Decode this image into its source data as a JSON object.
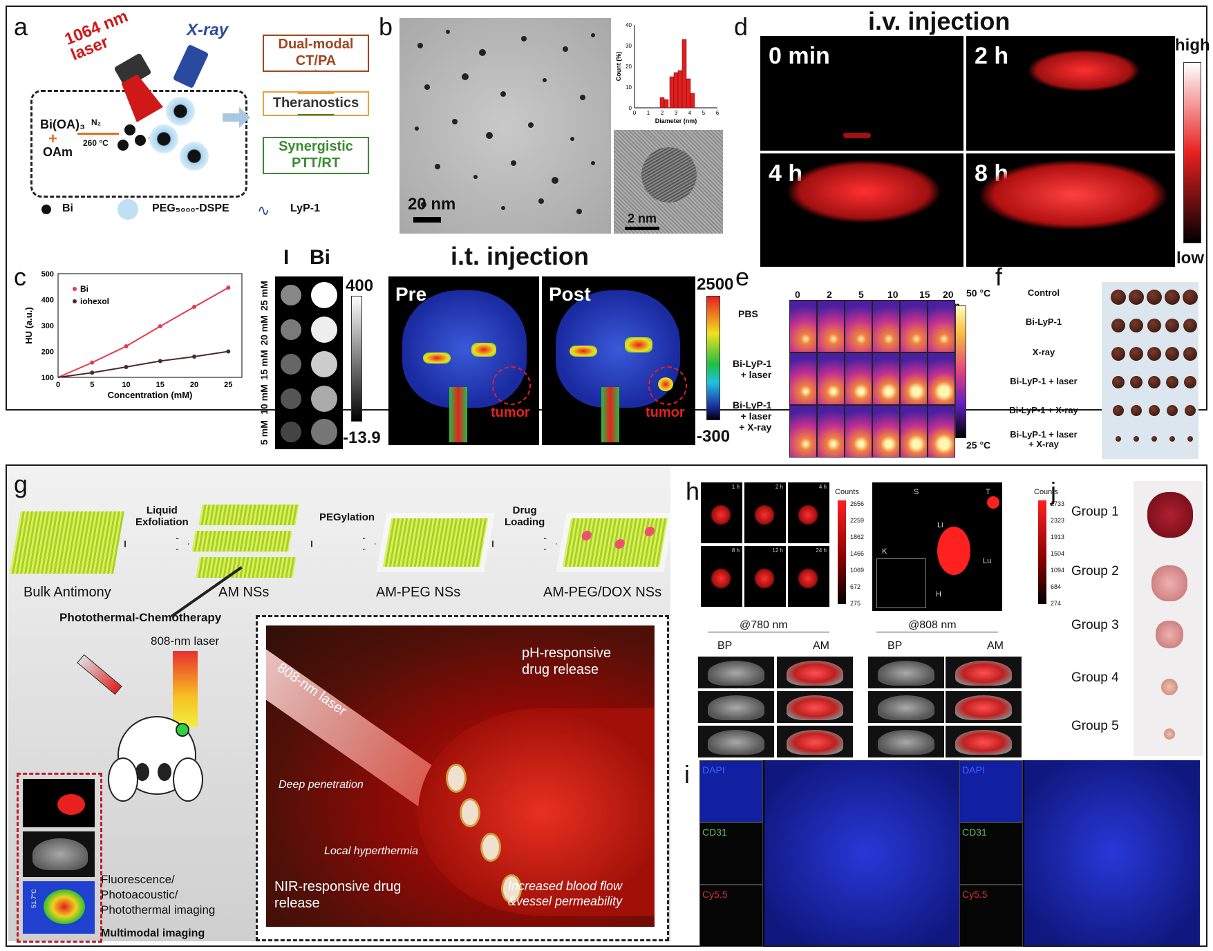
{
  "panels": {
    "a": {
      "letter": "a",
      "laser": "1064 nm\nlaser",
      "xray": "X-ray",
      "reagent1": "Bi(OA)₃",
      "reagent2": "OAm",
      "cond_gas": "N₂",
      "cond_temp": "260 °C",
      "box_top": "Dual-modal\nCT/PA",
      "box_mid": "Theranostics",
      "box_bot": "Synergistic\nPTT/RT",
      "legend_bi": "Bi",
      "legend_peg": "PEG₅₀₀₀-DSPE",
      "legend_lyp": "LyP-1"
    },
    "b": {
      "letter": "b",
      "scale1": "20 nm",
      "scale2": "2 nm",
      "hist_ylabel": "Count (%)",
      "hist_xlabel": "Diameter (nm)",
      "hist_yticks": [
        "0",
        "10",
        "20",
        "30",
        "40"
      ],
      "hist_xticks": [
        "0",
        "1",
        "2",
        "3",
        "4",
        "5",
        "6"
      ]
    },
    "c": {
      "letter": "c",
      "ylabel": "HU (a.u.)",
      "xlabel": "Concentration (mM)",
      "legend_bi": "Bi",
      "legend_iohexol": "iohexol",
      "ct_headers": [
        "I",
        "Bi"
      ],
      "ct_rows": [
        "25 mM",
        "20 mM",
        "15 mM",
        "10 mM",
        "5 mM"
      ],
      "ct_max": "400",
      "ct_min": "-13.9"
    },
    "d": {
      "letter": "d",
      "title": "i.v. injection",
      "times": [
        "0 min",
        "2 h",
        "4 h",
        "8 h"
      ],
      "high": "high",
      "low": "low"
    },
    "it": {
      "title": "i.t. injection",
      "pre": "Pre",
      "post": "Post",
      "tumor": "tumor",
      "max": "2500",
      "min": "-300"
    },
    "e": {
      "letter": "e",
      "times": [
        "0",
        "2",
        "5",
        "10",
        "15",
        "20 min"
      ],
      "rows": [
        "PBS",
        "Bi-LyP-1\n+ laser",
        "Bi-LyP-1\n+ laser\n+ X-ray"
      ],
      "t_high": "50 °C",
      "t_low": "25 °C"
    },
    "f": {
      "letter": "f",
      "rows": [
        "Control",
        "Bi-LyP-1",
        "X-ray",
        "Bi-LyP-1 + laser",
        "Bi-LyP-1 + X-ray",
        "Bi-LyP-1 + laser\n+ X-ray"
      ]
    },
    "g": {
      "letter": "g",
      "steps": [
        "Liquid\nExfoliation",
        "PEGylation",
        "Drug\nLoading"
      ],
      "stages": [
        "Bulk Antimony",
        "AM NSs",
        "AM-PEG NSs",
        "AM-PEG/DOX NSs"
      ],
      "therapy": "Photothermal-Chemotherapy",
      "laser": "808-nm laser",
      "inset_laser": "808-nm laser",
      "ph": "pH-responsive\ndrug release",
      "deep": "Deep penetration",
      "hyper": "Local hyperthermia",
      "nir": "NIR-responsive drug\nrelease",
      "blood": "Increased blood flow\n&vessel permeability",
      "imaging": "Fluorescence/\nPhotoacoustic/\nPhotothermal imaging",
      "multimodal": "Multimodal imaging",
      "temp": "51.7°C"
    },
    "h": {
      "letter": "h",
      "times": [
        "1 h",
        "2 h",
        "4 h",
        "8 h",
        "12 h",
        "24 h"
      ],
      "counts": "Counts",
      "scale1": [
        "2656",
        "2259",
        "1862",
        "1466",
        "1069",
        "672",
        "275"
      ],
      "scale2": [
        "2733",
        "2323",
        "1913",
        "1504",
        "1094",
        "684",
        "274"
      ],
      "organs": [
        "S",
        "T",
        "Li",
        "K",
        "Lu",
        "H"
      ],
      "wl1": "@780 nm",
      "wl2": "@808 nm",
      "cols": [
        "BP",
        "AM",
        "BP",
        "AM"
      ]
    },
    "i": {
      "letter": "i",
      "stains": [
        "DAPI",
        "CD31",
        "Cy5.5"
      ]
    },
    "j": {
      "letter": "j",
      "groups": [
        "Group 1",
        "Group 2",
        "Group 3",
        "Group 4",
        "Group 5"
      ]
    }
  },
  "colors": {
    "bi_line": "#e8384f",
    "iohexol_line": "#4a2a2a",
    "box_top": "#a0451f",
    "box_mid": "#e8a040",
    "box_bot": "#3a8a30",
    "hist_bar": "#e02020",
    "laser_red": "#d01818",
    "xray_blue": "#2a4aa0"
  },
  "chart_data": [
    {
      "type": "bar",
      "xlabel": "Diameter (nm)",
      "ylabel": "Count (%)",
      "ylim": [
        0,
        40
      ],
      "x": [
        2.0,
        2.3,
        2.7,
        3.0,
        3.3,
        3.6,
        3.9,
        4.2
      ],
      "values": [
        5,
        4,
        15,
        17,
        18,
        33,
        14,
        7
      ]
    },
    {
      "type": "line",
      "xlabel": "Concentration (mM)",
      "ylabel": "HU (a.u.)",
      "xlim": [
        0,
        27
      ],
      "ylim": [
        100,
        500
      ],
      "series": [
        {
          "name": "Bi",
          "x": [
            0,
            5,
            10,
            15,
            20,
            25
          ],
          "values": [
            100,
            157,
            220,
            297,
            372,
            446
          ]
        },
        {
          "name": "iohexol",
          "x": [
            0,
            5,
            10,
            15,
            20,
            25
          ],
          "values": [
            100,
            118,
            140,
            163,
            180,
            200
          ]
        }
      ]
    }
  ]
}
